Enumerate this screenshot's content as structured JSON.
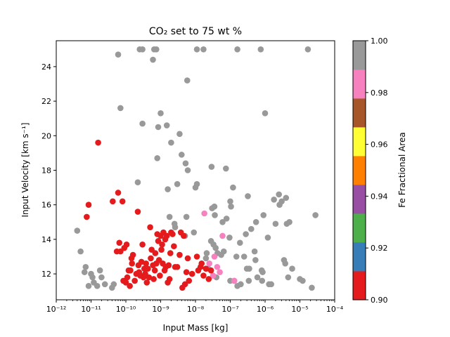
{
  "chart_data": {
    "type": "scatter",
    "title": "CO₂ set to 75 wt %",
    "xlabel": "Input Mass [kg]",
    "ylabel": "Input Velocity [km s⁻¹]",
    "xscale": "log",
    "xlim": [
      1e-12,
      0.0001
    ],
    "ylim": [
      10.5,
      25.5
    ],
    "x_ticks": [
      1e-12,
      1e-11,
      1e-10,
      1e-09,
      1e-08,
      1e-07,
      1e-06,
      1e-05,
      0.0001
    ],
    "x_tick_labels": [
      "10⁻¹²",
      "10⁻¹¹",
      "10⁻¹⁰",
      "10⁻⁹",
      "10⁻⁸",
      "10⁻⁷",
      "10⁻⁶",
      "10⁻⁵",
      "10⁻⁴"
    ],
    "y_ticks": [
      12,
      14,
      16,
      18,
      20,
      22,
      24
    ],
    "y_tick_labels": [
      "12",
      "14",
      "16",
      "18",
      "20",
      "22",
      "24"
    ],
    "grid": false,
    "colorbar": {
      "label": "Fe Fractional Area",
      "range": [
        0.9,
        1.0
      ],
      "ticks": [
        0.9,
        0.92,
        0.94,
        0.96,
        0.98,
        1.0
      ],
      "tick_labels": [
        "0.90",
        "0.92",
        "0.94",
        "0.96",
        "0.98",
        "1.00"
      ],
      "colormap": "Set1",
      "colors": [
        "#e41a1c",
        "#377eb8",
        "#4daf4a",
        "#984ea3",
        "#ff7f00",
        "#ffff33",
        "#a65628",
        "#f781bf",
        "#999999"
      ]
    },
    "points": [
      [
        4e-12,
        14.5,
        1.0
      ],
      [
        5e-12,
        13.3,
        1.0
      ],
      [
        6.5e-12,
        12.1,
        1.0
      ],
      [
        7e-12,
        12.4,
        1.0
      ],
      [
        8.5e-12,
        11.3,
        1.0
      ],
      [
        1e-11,
        12.0,
        1.0
      ],
      [
        1.1e-11,
        11.8,
        1.0
      ],
      [
        1.2e-11,
        11.5,
        1.0
      ],
      [
        1.5e-11,
        11.3,
        1.0
      ],
      [
        1.8e-11,
        12.2,
        1.0
      ],
      [
        2e-11,
        11.8,
        1.0
      ],
      [
        2.5e-11,
        11.4,
        1.0
      ],
      [
        4e-11,
        11.2,
        1.0
      ],
      [
        4.5e-11,
        11.4,
        1.0
      ],
      [
        6e-11,
        24.7,
        1.0
      ],
      [
        7e-11,
        21.6,
        1.0
      ],
      [
        2.2e-10,
        17.3,
        1.0
      ],
      [
        2.5e-10,
        25.0,
        1.0
      ],
      [
        3e-10,
        25.0,
        1.0
      ],
      [
        3e-10,
        20.7,
        1.0
      ],
      [
        6e-10,
        24.4,
        1.0
      ],
      [
        6.5e-10,
        25.0,
        1.0
      ],
      [
        7.5e-10,
        25.0,
        1.0
      ],
      [
        8e-10,
        18.7,
        1.0
      ],
      [
        8.5e-10,
        20.5,
        1.0
      ],
      [
        1e-09,
        21.3,
        1.0
      ],
      [
        1.5e-09,
        20.6,
        1.0
      ],
      [
        1.6e-09,
        16.9,
        1.0
      ],
      [
        1.8e-09,
        15.3,
        1.0
      ],
      [
        2e-09,
        19.6,
        1.0
      ],
      [
        2.5e-09,
        14.9,
        1.0
      ],
      [
        2.6e-09,
        14.7,
        1.0
      ],
      [
        3e-09,
        17.2,
        1.0
      ],
      [
        3.5e-09,
        20.1,
        1.0
      ],
      [
        4e-09,
        18.9,
        1.0
      ],
      [
        5e-09,
        14.2,
        1.0
      ],
      [
        5.2e-09,
        18.4,
        1.0
      ],
      [
        5.5e-09,
        15.3,
        1.0
      ],
      [
        5.8e-09,
        23.2,
        1.0
      ],
      [
        6e-09,
        18.0,
        1.0
      ],
      [
        9e-09,
        14.4,
        1.0
      ],
      [
        1e-08,
        17.0,
        1.0
      ],
      [
        1.1e-08,
        25.0,
        1.0
      ],
      [
        1.1e-08,
        17.2,
        1.0
      ],
      [
        1.7e-08,
        25.0,
        1.0
      ],
      [
        2e-08,
        12.9,
        1.0
      ],
      [
        2.1e-08,
        13.2,
        1.0
      ],
      [
        2.3e-08,
        12.3,
        1.0
      ],
      [
        2.8e-08,
        13.9,
        1.0
      ],
      [
        2.9e-08,
        18.2,
        1.0
      ],
      [
        3e-08,
        15.8,
        1.0
      ],
      [
        3.3e-08,
        13.7,
        1.0
      ],
      [
        3.5e-08,
        15.9,
        1.0
      ],
      [
        3.6e-08,
        15.4,
        1.0
      ],
      [
        3.8e-08,
        13.5,
        1.0
      ],
      [
        4e-08,
        11.8,
        1.0
      ],
      [
        4.3e-08,
        13.2,
        1.0
      ],
      [
        5.5e-08,
        13.1,
        1.0
      ],
      [
        6e-08,
        15.0,
        1.0
      ],
      [
        6.5e-08,
        13.3,
        1.0
      ],
      [
        7.5e-08,
        18.1,
        1.0
      ],
      [
        7.8e-08,
        15.2,
        1.0
      ],
      [
        9.5e-08,
        14.1,
        1.0
      ],
      [
        1e-07,
        16.2,
        1.0
      ],
      [
        1e-07,
        11.6,
        1.0
      ],
      [
        1.05e-07,
        15.9,
        1.0
      ],
      [
        1.2e-07,
        17.0,
        1.0
      ],
      [
        1.3e-07,
        11.6,
        1.0
      ],
      [
        1.5e-07,
        13.0,
        1.0
      ],
      [
        1.6e-07,
        25.0,
        1.0
      ],
      [
        1.6e-07,
        11.3,
        1.0
      ],
      [
        1.9e-07,
        13.8,
        1.0
      ],
      [
        2e-07,
        11.4,
        1.0
      ],
      [
        2.5e-07,
        13.0,
        1.0
      ],
      [
        2.8e-07,
        14.3,
        1.0
      ],
      [
        3e-07,
        12.3,
        1.0
      ],
      [
        3.2e-07,
        16.5,
        1.0
      ],
      [
        3.4e-07,
        11.6,
        1.0
      ],
      [
        3.5e-07,
        12.3,
        1.0
      ],
      [
        4e-07,
        14.6,
        1.0
      ],
      [
        5e-07,
        13.3,
        1.0
      ],
      [
        5.3e-07,
        12.8,
        1.0
      ],
      [
        5.5e-07,
        15.0,
        1.0
      ],
      [
        6e-07,
        11.8,
        1.0
      ],
      [
        7.5e-07,
        25.0,
        1.0
      ],
      [
        8e-07,
        12.2,
        1.0
      ],
      [
        8.2e-07,
        11.6,
        1.0
      ],
      [
        8.5e-07,
        12.1,
        1.0
      ],
      [
        9e-07,
        15.4,
        1.0
      ],
      [
        1e-06,
        21.3,
        1.0
      ],
      [
        1.2e-06,
        14.1,
        1.0
      ],
      [
        1.3e-06,
        11.4,
        1.0
      ],
      [
        1.5e-06,
        11.4,
        1.0
      ],
      [
        1.8e-06,
        16.3,
        1.0
      ],
      [
        2e-06,
        14.9,
        1.0
      ],
      [
        2.5e-06,
        16.6,
        1.0
      ],
      [
        2.6e-06,
        16.0,
        1.0
      ],
      [
        3e-06,
        16.2,
        1.0
      ],
      [
        3.5e-06,
        12.8,
        1.0
      ],
      [
        3.8e-06,
        12.6,
        1.0
      ],
      [
        4e-06,
        16.4,
        1.0
      ],
      [
        4.2e-06,
        14.9,
        1.0
      ],
      [
        4.6e-06,
        11.8,
        1.0
      ],
      [
        5e-06,
        15.0,
        1.0
      ],
      [
        6e-06,
        12.3,
        1.0
      ],
      [
        1e-05,
        11.7,
        1.0
      ],
      [
        1.2e-05,
        11.6,
        1.0
      ],
      [
        1.7e-05,
        25.0,
        1.0
      ],
      [
        2.2e-05,
        11.2,
        1.0
      ],
      [
        2.8e-05,
        15.4,
        1.0
      ],
      [
        1.8e-08,
        15.5,
        0.98
      ],
      [
        6e-08,
        14.2,
        0.98
      ],
      [
        3.5e-08,
        13.0,
        0.98
      ],
      [
        2.5e-08,
        12.6,
        0.98
      ],
      [
        4.2e-08,
        12.4,
        0.98
      ],
      [
        5e-08,
        12.1,
        0.98
      ],
      [
        3.2e-08,
        11.9,
        0.98
      ],
      [
        1.3e-07,
        11.6,
        0.98
      ],
      [
        7.5e-12,
        15.3,
        0.9
      ],
      [
        8.5e-12,
        16.0,
        0.9
      ],
      [
        1.6e-11,
        19.6,
        0.9
      ],
      [
        4.2e-11,
        16.2,
        0.9
      ],
      [
        6e-11,
        16.7,
        0.9
      ],
      [
        8e-11,
        16.2,
        0.9
      ],
      [
        5.5e-11,
        13.3,
        0.9
      ],
      [
        6.5e-11,
        13.8,
        0.9
      ],
      [
        7e-11,
        13.3,
        0.9
      ],
      [
        8.5e-11,
        11.6,
        0.9
      ],
      [
        9e-11,
        13.5,
        0.9
      ],
      [
        1e-10,
        11.5,
        0.9
      ],
      [
        1.05e-10,
        13.7,
        0.9
      ],
      [
        1.1e-10,
        11.8,
        0.9
      ],
      [
        1.2e-10,
        12.2,
        0.9
      ],
      [
        1.3e-10,
        11.3,
        0.9
      ],
      [
        1.35e-10,
        12.2,
        0.9
      ],
      [
        1.45e-10,
        12.9,
        0.9
      ],
      [
        1.5e-10,
        12.6,
        0.9
      ],
      [
        1.6e-10,
        13.1,
        0.9
      ],
      [
        1.8e-10,
        11.6,
        0.9
      ],
      [
        2e-10,
        12.0,
        0.9
      ],
      [
        2.2e-10,
        15.6,
        0.9
      ],
      [
        2.3e-10,
        12.5,
        0.9
      ],
      [
        2.4e-10,
        12.1,
        0.9
      ],
      [
        2.6e-10,
        11.9,
        0.9
      ],
      [
        2.8e-10,
        12.7,
        0.9
      ],
      [
        3e-10,
        13.7,
        0.9
      ],
      [
        3.2e-10,
        11.8,
        0.9
      ],
      [
        3.4e-10,
        12.3,
        0.9
      ],
      [
        3.6e-10,
        12.0,
        0.9
      ],
      [
        3.8e-10,
        12.6,
        0.9
      ],
      [
        4e-10,
        11.5,
        0.9
      ],
      [
        4.3e-10,
        12.3,
        0.9
      ],
      [
        4.6e-10,
        11.8,
        0.9
      ],
      [
        5e-10,
        14.7,
        0.9
      ],
      [
        5.2e-10,
        12.9,
        0.9
      ],
      [
        5.5e-10,
        13.4,
        0.9
      ],
      [
        6e-10,
        12.5,
        0.9
      ],
      [
        6.3e-10,
        11.7,
        0.9
      ],
      [
        6.8e-10,
        12.2,
        0.9
      ],
      [
        7e-10,
        13.2,
        0.9
      ],
      [
        7.5e-10,
        12.6,
        0.9
      ],
      [
        8e-10,
        14.3,
        0.9
      ],
      [
        8.5e-10,
        13.9,
        0.9
      ],
      [
        9e-10,
        12.8,
        0.9
      ],
      [
        9.5e-10,
        11.9,
        0.9
      ],
      [
        1e-09,
        14.2,
        0.9
      ],
      [
        1.05e-09,
        13.4,
        0.9
      ],
      [
        1.1e-09,
        13.7,
        0.9
      ],
      [
        1.15e-09,
        12.6,
        0.9
      ],
      [
        1.2e-09,
        14.4,
        0.9
      ],
      [
        1.3e-09,
        12.2,
        0.9
      ],
      [
        1.35e-09,
        14.0,
        0.9
      ],
      [
        1.4e-09,
        12.4,
        0.9
      ],
      [
        1.5e-09,
        14.2,
        0.9
      ],
      [
        1.6e-09,
        11.5,
        0.9
      ],
      [
        1.7e-09,
        12.5,
        0.9
      ],
      [
        1.8e-09,
        11.7,
        0.9
      ],
      [
        1.9e-09,
        13.2,
        0.9
      ],
      [
        2e-09,
        14.4,
        0.9
      ],
      [
        2.2e-09,
        14.3,
        0.9
      ],
      [
        2.4e-09,
        13.6,
        0.9
      ],
      [
        2.6e-09,
        12.4,
        0.9
      ],
      [
        3e-09,
        12.4,
        0.9
      ],
      [
        3.5e-09,
        13.1,
        0.9
      ],
      [
        3.8e-09,
        14.4,
        0.9
      ],
      [
        4.2e-09,
        11.2,
        0.9
      ],
      [
        4.6e-09,
        14.2,
        0.9
      ],
      [
        5e-09,
        11.4,
        0.9
      ],
      [
        5.5e-09,
        12.1,
        0.9
      ],
      [
        6e-09,
        12.9,
        0.9
      ],
      [
        6.5e-09,
        11.6,
        0.9
      ],
      [
        8e-09,
        12.0,
        0.9
      ],
      [
        1.1e-08,
        13.0,
        0.9
      ],
      [
        1.2e-08,
        12.2,
        0.9
      ],
      [
        1.4e-08,
        12.4,
        0.9
      ],
      [
        1.5e-08,
        12.6,
        0.9
      ],
      [
        1.7e-08,
        11.9,
        0.9
      ],
      [
        2e-08,
        12.3,
        0.9
      ],
      [
        2.4e-08,
        11.7,
        0.9
      ],
      [
        2.8e-08,
        12.2,
        0.9
      ]
    ]
  }
}
